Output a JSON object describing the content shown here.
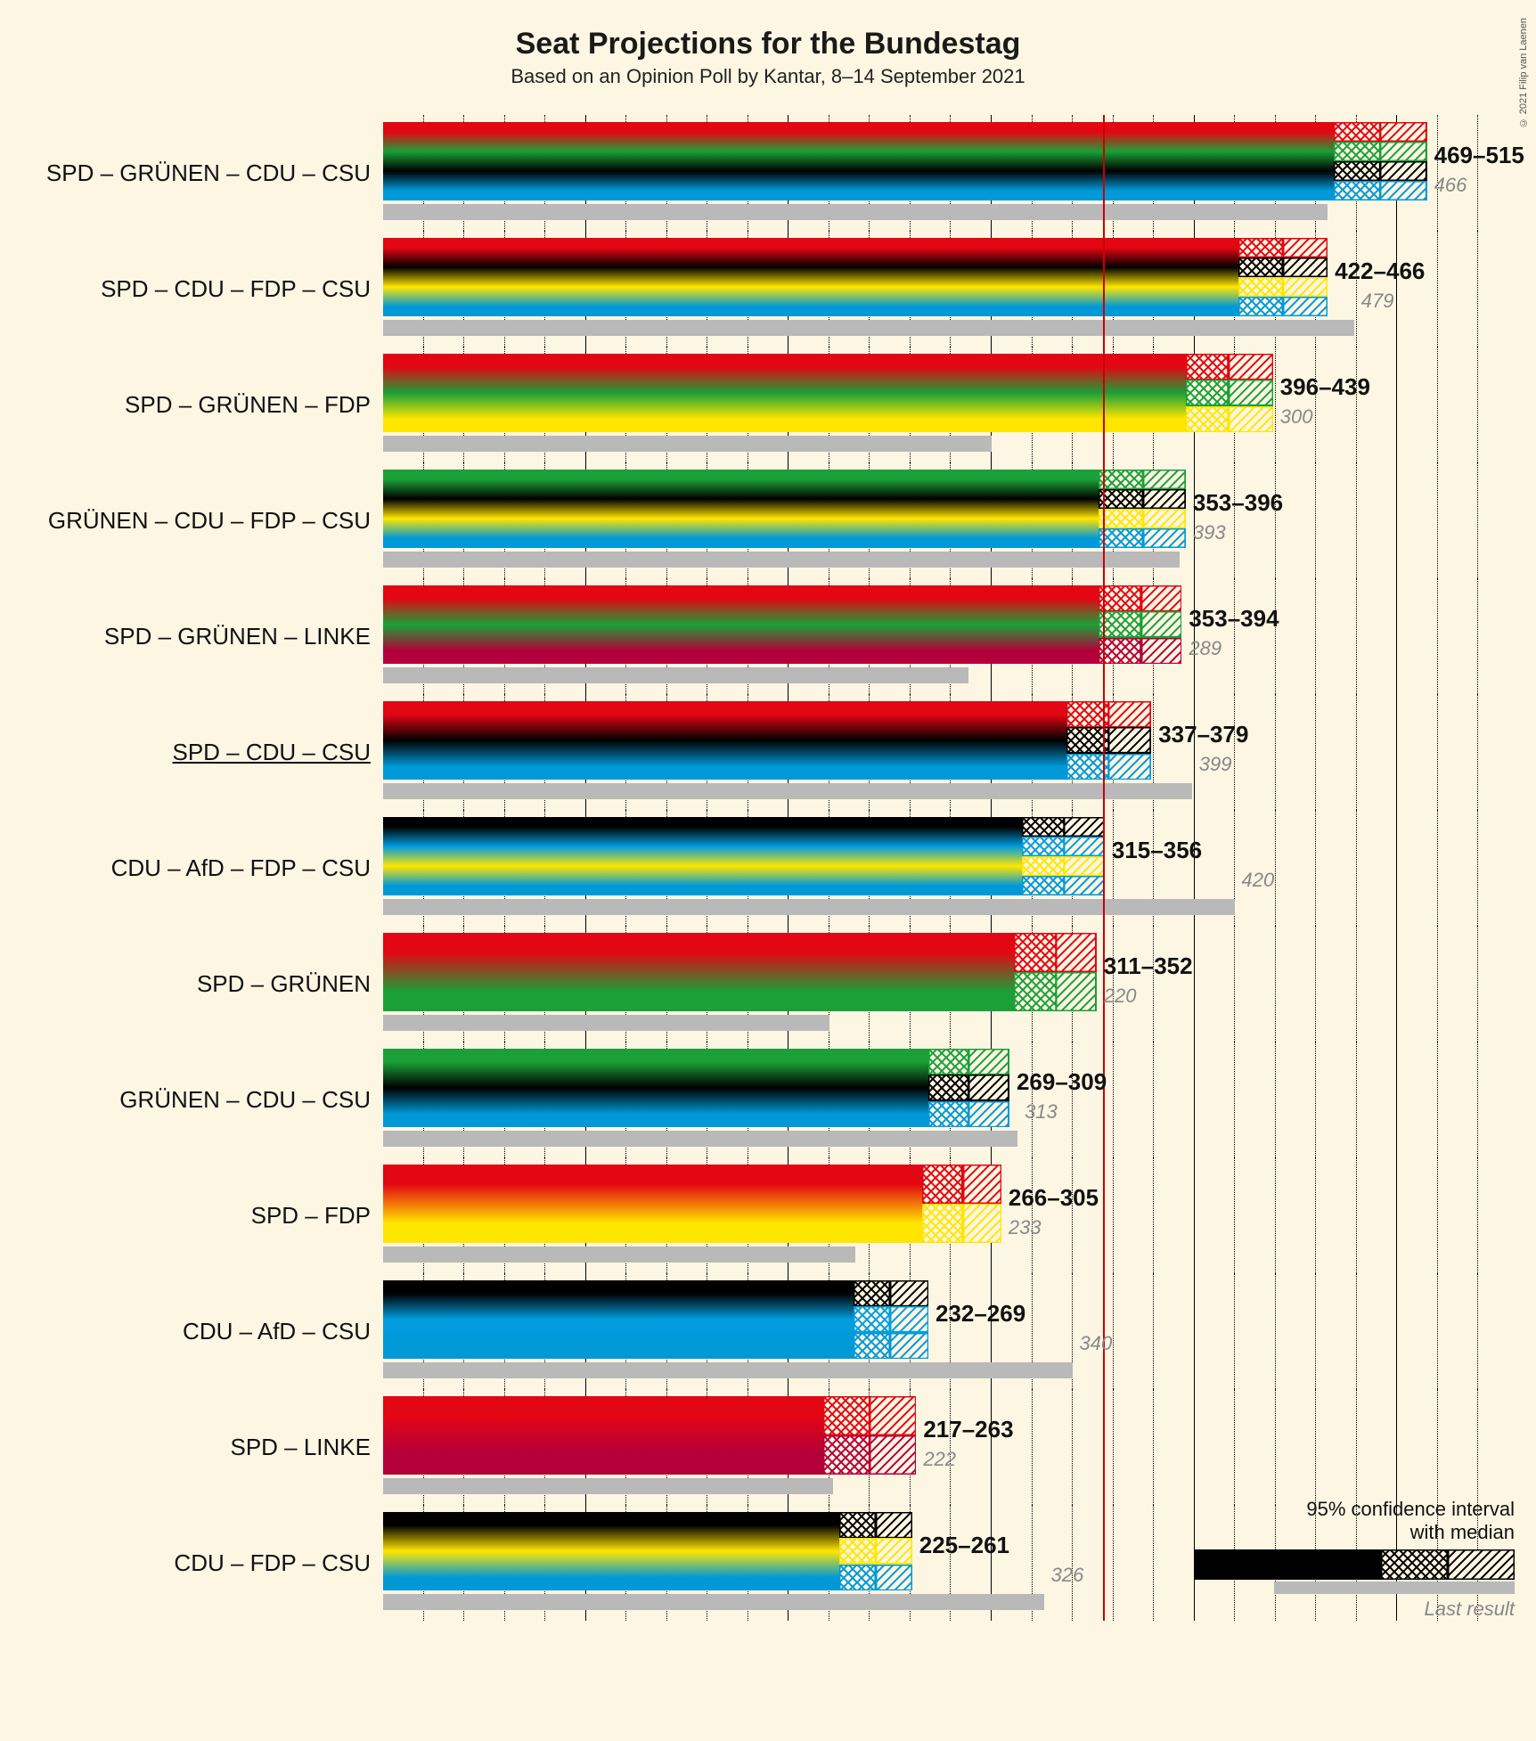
{
  "title": "Seat Projections for the Bundestag",
  "subtitle": "Based on an Opinion Poll by Kantar, 8–14 September 2021",
  "copyright": "© 2021 Filip van Laenen",
  "legend": {
    "line1": "95% confidence interval",
    "line1b": "with median",
    "line2": "Last result"
  },
  "chart": {
    "type": "bar",
    "x_domain_max": 560,
    "grid_major_step": 100,
    "grid_minor_step": 20,
    "threshold": 355,
    "background_color": "#fdf6e3",
    "grid_color_dotted": "#000000",
    "threshold_color": "#cc0000",
    "last_bar_color": "#b9b9b9",
    "title_fontsize": 34,
    "subtitle_fontsize": 22,
    "label_fontsize": 26,
    "value_fontsize": 26,
    "lastvalue_fontsize": 22,
    "party_colors": {
      "SPD": "#e30613",
      "GRUENEN": "#1aa037",
      "CDU": "#000000",
      "CSU": "#0099d8",
      "FDP": "#ffe600",
      "LINKE": "#b3003a",
      "AfD": "#009de0"
    },
    "coalitions": [
      {
        "label": "SPD – GRÜNEN – CDU – CSU",
        "parties": [
          "SPD",
          "GRUENEN",
          "CDU",
          "CSU"
        ],
        "low": 469,
        "median": 492,
        "high": 515,
        "last": 466
      },
      {
        "label": "SPD – CDU – FDP – CSU",
        "parties": [
          "SPD",
          "CDU",
          "FDP",
          "CSU"
        ],
        "low": 422,
        "median": 444,
        "high": 466,
        "last": 479
      },
      {
        "label": "SPD – GRÜNEN – FDP",
        "parties": [
          "SPD",
          "GRUENEN",
          "FDP"
        ],
        "low": 396,
        "median": 417,
        "high": 439,
        "last": 300
      },
      {
        "label": "GRÜNEN – CDU – FDP – CSU",
        "parties": [
          "GRUENEN",
          "CDU",
          "FDP",
          "CSU"
        ],
        "low": 353,
        "median": 375,
        "high": 396,
        "last": 393
      },
      {
        "label": "SPD – GRÜNEN – LINKE",
        "parties": [
          "SPD",
          "GRUENEN",
          "LINKE"
        ],
        "low": 353,
        "median": 374,
        "high": 394,
        "last": 289
      },
      {
        "label": "SPD – CDU – CSU",
        "parties": [
          "SPD",
          "CDU",
          "CSU"
        ],
        "low": 337,
        "median": 358,
        "high": 379,
        "last": 399,
        "underline": true
      },
      {
        "label": "CDU – AfD – FDP – CSU",
        "parties": [
          "CDU",
          "AfD",
          "FDP",
          "CSU"
        ],
        "low": 315,
        "median": 336,
        "high": 356,
        "last": 420
      },
      {
        "label": "SPD – GRÜNEN",
        "parties": [
          "SPD",
          "GRUENEN"
        ],
        "low": 311,
        "median": 332,
        "high": 352,
        "last": 220
      },
      {
        "label": "GRÜNEN – CDU – CSU",
        "parties": [
          "GRUENEN",
          "CDU",
          "CSU"
        ],
        "low": 269,
        "median": 289,
        "high": 309,
        "last": 313
      },
      {
        "label": "SPD – FDP",
        "parties": [
          "SPD",
          "FDP"
        ],
        "low": 266,
        "median": 286,
        "high": 305,
        "last": 233
      },
      {
        "label": "CDU – AfD – CSU",
        "parties": [
          "CDU",
          "AfD",
          "CSU"
        ],
        "low": 232,
        "median": 250,
        "high": 269,
        "last": 340
      },
      {
        "label": "SPD – LINKE",
        "parties": [
          "SPD",
          "LINKE"
        ],
        "low": 217,
        "median": 240,
        "high": 263,
        "last": 222
      },
      {
        "label": "CDU – FDP – CSU",
        "parties": [
          "CDU",
          "FDP",
          "CSU"
        ],
        "low": 225,
        "median": 243,
        "high": 261,
        "last": 326
      }
    ]
  }
}
